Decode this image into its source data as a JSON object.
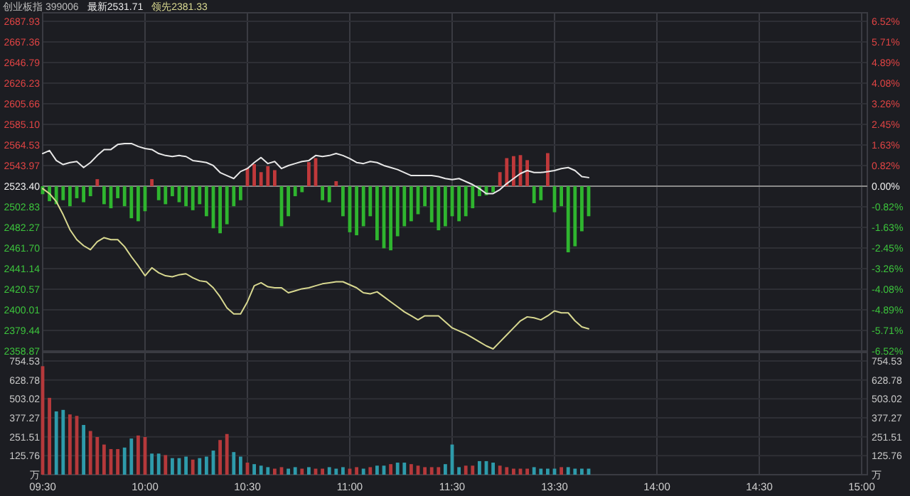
{
  "chart_data": [
    {
      "type": "line",
      "title": "创业板指 399006",
      "annotations": [
        "最新2531.71",
        "领先2381.33"
      ],
      "categories": [
        null,
        null,
        null,
        null,
        null,
        null,
        null,
        null,
        null,
        null,
        null,
        null,
        null,
        null,
        null,
        null,
        null,
        null,
        null,
        null,
        null,
        null,
        null,
        null,
        null,
        null,
        null,
        null,
        null,
        null,
        null,
        null,
        null,
        null,
        null,
        null,
        null,
        null,
        null,
        null,
        null,
        null,
        null,
        null,
        null,
        null,
        null,
        null,
        null,
        null,
        null,
        null,
        null,
        null,
        null,
        null,
        null,
        null,
        null,
        null,
        null,
        null,
        null,
        null,
        null,
        null,
        null,
        null,
        null,
        null,
        null,
        null,
        null,
        null,
        null,
        null,
        null,
        null,
        null,
        null,
        null,
        null,
        null,
        null,
        null,
        null,
        null,
        null,
        null,
        null,
        null,
        null,
        null,
        null,
        null,
        null,
        null,
        null,
        null,
        null,
        null,
        null,
        null,
        null,
        null,
        null,
        null,
        null,
        null,
        null,
        null,
        null,
        null,
        null,
        null,
        null,
        null,
        null,
        null,
        null,
        null
      ],
      "series": [
        {
          "type": "bar",
          "values": [
            -8,
            -15,
            -18,
            -14,
            -20,
            -12,
            -16,
            -10,
            7,
            -18,
            -22,
            -12,
            -20,
            -32,
            -35,
            -25,
            7,
            -14,
            -18,
            -10,
            -16,
            -20,
            -24,
            -18,
            -30,
            -42,
            -47,
            -38,
            -20,
            -14,
            18,
            22,
            14,
            20,
            16,
            -40,
            -30,
            -10,
            -6,
            24,
            28,
            -14,
            -16,
            5,
            -30,
            -46,
            -49,
            -40,
            -30,
            -54,
            -62,
            -64,
            -50,
            -40,
            -35,
            -28,
            -20,
            -36,
            -44,
            -40,
            -30,
            -35,
            -30,
            -22,
            -10,
            -9,
            -6,
            14,
            28,
            30,
            31,
            26,
            -17,
            -14,
            33,
            -26,
            -20,
            -66,
            -60,
            -45,
            -30,
            null,
            null,
            null,
            null,
            null,
            null,
            null,
            null,
            null,
            null,
            null,
            null,
            null,
            null,
            null,
            null,
            null,
            null,
            null,
            null,
            null,
            null,
            null,
            null,
            null,
            null,
            null,
            null,
            null,
            null,
            null,
            null,
            null,
            null,
            null,
            null,
            null,
            null,
            null,
            null
          ],
          "base": [
            2523.4,
            2523.4,
            2523.4,
            2523.4,
            2523.4,
            2523.4,
            2523.4,
            2523.4,
            2523.4,
            2523.4,
            2523.4,
            2523.4,
            2523.4,
            2523.4,
            2523.4,
            2523.4,
            2523.4,
            2523.4,
            2523.4,
            2523.4,
            2523.4,
            2523.4,
            2523.4,
            2523.4,
            2523.4,
            2523.4,
            2523.4,
            2523.4,
            2523.4,
            2523.4,
            2523.4,
            2523.4,
            2523.4,
            2523.4,
            2523.4,
            2523.4,
            2523.4,
            2523.4,
            2523.4,
            2523.4,
            2523.4,
            2523.4,
            2523.4,
            2523.4,
            2523.4,
            2523.4,
            2523.4,
            2523.4,
            2523.4,
            2523.4,
            2523.4,
            2523.4,
            2523.4,
            2523.4,
            2523.4,
            2523.4,
            2523.4,
            2523.4,
            2523.4,
            2523.4,
            2523.4,
            2523.4,
            2523.4,
            2523.4,
            2523.4,
            2523.4,
            2523.4,
            2523.4,
            2523.4,
            2523.4,
            2523.4,
            2523.4,
            2523.4,
            2523.4,
            2523.4,
            2523.4,
            2523.4,
            2523.4,
            2523.4,
            2523.4,
            2523.4,
            null,
            null,
            null,
            null,
            null,
            null,
            null,
            null,
            null,
            null,
            null,
            null,
            null,
            null,
            null,
            null,
            null,
            null,
            null,
            null,
            null,
            null,
            null,
            null,
            null,
            null,
            null,
            null,
            null,
            null,
            null,
            null,
            null,
            null,
            null,
            null,
            null,
            null,
            null,
            null
          ],
          "colors": [
            "#2fb52f",
            "#2fb52f",
            "#2fb52f",
            "#2fb52f",
            "#2fb52f",
            "#2fb52f",
            "#2fb52f",
            "#2fb52f",
            "#c0393b",
            "#2fb52f",
            "#2fb52f",
            "#2fb52f",
            "#2fb52f",
            "#2fb52f",
            "#2fb52f",
            "#2fb52f",
            "#c0393b",
            "#2fb52f",
            "#2fb52f",
            "#2fb52f",
            "#2fb52f",
            "#2fb52f",
            "#2fb52f",
            "#2fb52f",
            "#2fb52f",
            "#2fb52f",
            "#2fb52f",
            "#2fb52f",
            "#2fb52f",
            "#2fb52f",
            "#c0393b",
            "#c0393b",
            "#c0393b",
            "#c0393b",
            "#c0393b",
            "#2fb52f",
            "#2fb52f",
            "#2fb52f",
            "#2fb52f",
            "#c0393b",
            "#c0393b",
            "#2fb52f",
            "#2fb52f",
            "#c0393b",
            "#2fb52f",
            "#2fb52f",
            "#2fb52f",
            "#2fb52f",
            "#2fb52f",
            "#2fb52f",
            "#2fb52f",
            "#2fb52f",
            "#2fb52f",
            "#2fb52f",
            "#2fb52f",
            "#2fb52f",
            "#2fb52f",
            "#2fb52f",
            "#2fb52f",
            "#2fb52f",
            "#2fb52f",
            "#2fb52f",
            "#2fb52f",
            "#2fb52f",
            "#2fb52f",
            "#2fb52f",
            "#2fb52f",
            "#c0393b",
            "#c0393b",
            "#c0393b",
            "#c0393b",
            "#c0393b",
            "#2fb52f",
            "#2fb52f",
            "#c0393b",
            "#2fb52f",
            "#2fb52f",
            "#2fb52f",
            "#2fb52f",
            "#2fb52f",
            "#2fb52f",
            null,
            null,
            null,
            null,
            null,
            null,
            null,
            null,
            null,
            null,
            null,
            null,
            null,
            null,
            null,
            null,
            null,
            null,
            null,
            null,
            null,
            null,
            null,
            null,
            null,
            null,
            null,
            null,
            null,
            null,
            null,
            null,
            null,
            null,
            null,
            null,
            null,
            null,
            null,
            null
          ]
        },
        {
          "type": "line",
          "color": "#e8e8e8",
          "values": [
            2556,
            2559,
            2549,
            2545,
            2547,
            2548,
            2542,
            2547,
            2554,
            2560,
            2560,
            2565,
            2566,
            2566,
            2563,
            2561,
            2560,
            2556,
            2554,
            2553,
            2554,
            2553,
            2549,
            2548,
            2547,
            2544,
            2537,
            2534,
            2531,
            2538,
            2541,
            2547,
            2552,
            2546,
            2548,
            2541,
            2544,
            2546,
            2548,
            2549,
            2554,
            2553,
            2554,
            2556,
            2554,
            2551,
            2547,
            2546,
            2548,
            2547,
            2544,
            2542,
            2540,
            2537,
            2534,
            2534,
            2534,
            2534,
            2533,
            2531,
            2530,
            2531,
            2528,
            2525,
            2521,
            2516,
            2516,
            2520,
            2526,
            2531,
            2536,
            2539,
            2537,
            2537,
            2538,
            2539,
            2541,
            2542,
            2539,
            2533,
            2532,
            null,
            null,
            null,
            null,
            null,
            null,
            null,
            null,
            null,
            null,
            null,
            null,
            null,
            null,
            null,
            null,
            null,
            null,
            null,
            null,
            null,
            null,
            null,
            null,
            null,
            null,
            null,
            null,
            null,
            null,
            null,
            null,
            null,
            null,
            null,
            null,
            null,
            null,
            null,
            null
          ]
        },
        {
          "type": "line",
          "color": "#d8d890",
          "values": [
            2521,
            2516,
            2508,
            2495,
            2480,
            2470,
            2464,
            2460,
            2468,
            2472,
            2470,
            2470,
            2463,
            2453,
            2444,
            2434,
            2442,
            2437,
            2434,
            2433,
            2435,
            2436,
            2432,
            2429,
            2428,
            2422,
            2413,
            2402,
            2396,
            2396,
            2408,
            2424,
            2427,
            2423,
            2422,
            2422,
            2417,
            2419,
            2421,
            2422,
            2424,
            2426,
            2427,
            2428,
            2428,
            2425,
            2422,
            2417,
            2416,
            2418,
            2413,
            2408,
            2403,
            2398,
            2394,
            2390,
            2394,
            2394,
            2394,
            2388,
            2382,
            2379,
            2376,
            2372,
            2368,
            2364,
            2361,
            2368,
            2375,
            2382,
            2389,
            2393,
            2392,
            2390,
            2394,
            2399,
            2397,
            2397,
            2389,
            2383,
            2381,
            null,
            null,
            null,
            null,
            null,
            null,
            null,
            null,
            null,
            null,
            null,
            null,
            null,
            null,
            null,
            null,
            null,
            null,
            null,
            null,
            null,
            null,
            null,
            null,
            null,
            null,
            null,
            null,
            null,
            null,
            null,
            null,
            null,
            null,
            null,
            null,
            null,
            null,
            null,
            null
          ]
        }
      ],
      "ylim": [
        2358.87,
        2687.93
      ],
      "yticks": [
        2358.87,
        2379.44,
        2400.01,
        2420.57,
        2441.14,
        {
          "value": 2461.7,
          "label": "2461.70"
        },
        2482.27,
        2502.83,
        {
          "value": 2523.4,
          "label": "2523.40"
        },
        2543.97,
        2564.53,
        {
          "value": 2585.1,
          "label": "2585.10"
        },
        2605.66,
        2626.23,
        2646.79,
        2667.36,
        2687.93
      ],
      "y2lim": [
        -6.52,
        6.52
      ],
      "y2ticks": [
        {
          "value": -6.52,
          "label": "-6.52%"
        },
        {
          "value": -5.71,
          "label": "-5.71%"
        },
        {
          "value": -4.89,
          "label": "-4.89%"
        },
        {
          "value": -4.08,
          "label": "-4.08%"
        },
        {
          "value": -3.26,
          "label": "-3.26%"
        },
        {
          "value": -2.45,
          "label": "-2.45%"
        },
        {
          "value": -1.63,
          "label": "-1.63%"
        },
        {
          "value": -0.82,
          "label": "-0.82%"
        },
        {
          "value": 0,
          "label": "0.00%"
        },
        {
          "value": 0.82,
          "label": "0.82%"
        },
        {
          "value": 1.63,
          "label": "1.63%"
        },
        {
          "value": 2.45,
          "label": "2.45%"
        },
        {
          "value": 3.26,
          "label": "3.26%"
        },
        {
          "value": 4.08,
          "label": "4.08%"
        },
        {
          "value": 4.89,
          "label": "4.89%"
        },
        {
          "value": 5.71,
          "label": "5.71%"
        },
        {
          "value": 6.52,
          "label": "6.52%"
        }
      ],
      "ref_lines": [
        {
          "axis": "y",
          "value": 2523.4,
          "color": "#8a8a8a"
        }
      ],
      "grid": true,
      "tick_labels": "y"
    },
    {
      "type": "bar",
      "categories": [
        "09:30",
        null,
        null,
        null,
        null,
        null,
        null,
        null,
        null,
        null,
        null,
        null,
        null,
        null,
        null,
        "10:00",
        null,
        null,
        null,
        null,
        null,
        null,
        null,
        null,
        null,
        null,
        null,
        null,
        null,
        null,
        "10:30",
        null,
        null,
        null,
        null,
        null,
        null,
        null,
        null,
        null,
        null,
        null,
        null,
        null,
        null,
        "11:00",
        null,
        null,
        null,
        null,
        null,
        null,
        null,
        null,
        null,
        null,
        null,
        null,
        null,
        null,
        "11:30",
        null,
        null,
        null,
        null,
        null,
        null,
        null,
        null,
        null,
        null,
        null,
        null,
        null,
        null,
        "13:30",
        null,
        null,
        null,
        null,
        null,
        null,
        null,
        null,
        null,
        null,
        null,
        null,
        null,
        null,
        "14:00",
        null,
        null,
        null,
        null,
        null,
        null,
        null,
        null,
        null,
        null,
        null,
        null,
        null,
        null,
        "14:30",
        null,
        null,
        null,
        null,
        null,
        null,
        null,
        null,
        null,
        null,
        null,
        null,
        null,
        null,
        "15:00"
      ],
      "values": [
        720,
        510,
        420,
        430,
        400,
        390,
        330,
        290,
        250,
        200,
        170,
        170,
        180,
        240,
        260,
        250,
        140,
        140,
        130,
        110,
        110,
        120,
        100,
        110,
        120,
        160,
        230,
        270,
        150,
        120,
        80,
        70,
        60,
        50,
        40,
        50,
        40,
        50,
        40,
        50,
        40,
        40,
        50,
        40,
        50,
        40,
        50,
        40,
        50,
        60,
        60,
        70,
        80,
        80,
        70,
        60,
        50,
        50,
        50,
        70,
        200,
        50,
        60,
        60,
        90,
        90,
        80,
        60,
        50,
        40,
        40,
        40,
        50,
        40,
        40,
        40,
        50,
        50,
        40,
        40,
        40,
        null,
        null,
        null,
        null,
        null,
        null,
        null,
        null,
        null,
        null,
        null,
        null,
        null,
        null,
        null,
        null,
        null,
        null,
        null,
        null,
        null,
        null,
        null,
        null,
        null,
        null,
        null,
        null,
        null,
        null,
        null,
        null,
        null,
        null,
        null,
        null,
        null,
        null,
        null,
        null
      ],
      "colors": [
        "#b5393b",
        "#b5393b",
        "#2e9bab",
        "#2e9bab",
        "#b5393b",
        "#b5393b",
        "#2e9bab",
        "#b5393b",
        "#b5393b",
        "#b5393b",
        "#b5393b",
        "#b5393b",
        "#2e9bab",
        "#2e9bab",
        "#b5393b",
        "#b5393b",
        "#2e9bab",
        "#2e9bab",
        "#b5393b",
        "#2e9bab",
        "#2e9bab",
        "#2e9bab",
        "#b5393b",
        "#2e9bab",
        "#2e9bab",
        "#2e9bab",
        "#b5393b",
        "#b5393b",
        "#2e9bab",
        "#2e9bab",
        "#b5393b",
        "#2e9bab",
        "#2e9bab",
        "#2e9bab",
        "#b5393b",
        "#b5393b",
        "#2e9bab",
        "#2e9bab",
        "#b5393b",
        "#2e9bab",
        "#b5393b",
        "#b5393b",
        "#2e9bab",
        "#2e9bab",
        "#2e9bab",
        "#b5393b",
        "#b5393b",
        "#2e9bab",
        "#b5393b",
        "#2e9bab",
        "#2e9bab",
        "#b5393b",
        "#2e9bab",
        "#2e9bab",
        "#b5393b",
        "#b5393b",
        "#b5393b",
        "#b5393b",
        "#b5393b",
        "#2e9bab",
        "#2e9bab",
        "#2e9bab",
        "#b5393b",
        "#b5393b",
        "#2e9bab",
        "#2e9bab",
        "#2e9bab",
        "#b5393b",
        "#b5393b",
        "#b5393b",
        "#b5393b",
        "#b5393b",
        "#2e9bab",
        "#2e9bab",
        "#2e9bab",
        "#2e9bab",
        "#b5393b",
        "#2e9bab",
        "#2e9bab",
        "#2e9bab",
        "#2e9bab",
        null,
        null,
        null,
        null,
        null,
        null,
        null,
        null,
        null,
        null,
        null,
        null,
        null,
        null,
        null,
        null,
        null,
        null,
        null,
        null,
        null,
        null,
        null,
        null,
        null,
        null,
        null,
        null,
        null,
        null,
        null,
        null,
        null,
        null,
        null,
        null,
        null,
        null,
        null,
        null
      ],
      "ylim": [
        0,
        754.53
      ],
      "yticks": [
        {
          "value": 0,
          "label": "万"
        },
        125.76,
        251.51,
        377.27,
        503.02,
        628.78,
        754.53
      ],
      "y2lim": [
        0,
        754.53
      ],
      "y2ticks": [
        {
          "value": 0,
          "label": "万"
        },
        125.76,
        251.51,
        377.27,
        503.02,
        628.78,
        754.53
      ],
      "grid": true
    }
  ]
}
